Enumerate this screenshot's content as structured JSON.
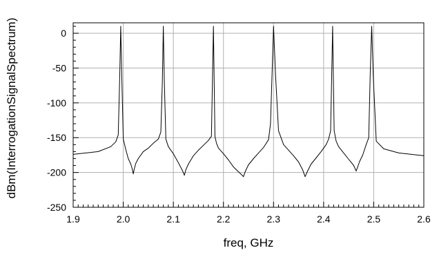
{
  "chart_data": {
    "type": "line",
    "title": "",
    "xlabel": "freq, GHz",
    "ylabel": "dBm(InterrogationSignalSpectrum)",
    "xlim": [
      1.9,
      2.6
    ],
    "ylim": [
      -250,
      15
    ],
    "x_ticks": [
      "1.9",
      "2.0",
      "2.1",
      "2.2",
      "2.3",
      "2.4",
      "2.5",
      "2.6"
    ],
    "y_ticks": [
      "0",
      "-50",
      "-100",
      "-150",
      "-200",
      "-250"
    ],
    "grid": true,
    "line_color": "#000000",
    "series": [
      {
        "x": [
          1.9,
          1.95,
          1.975,
          1.985,
          1.99,
          1.993,
          1.995,
          1.997,
          2.0,
          2.005,
          2.01,
          2.015,
          2.018,
          2.02,
          2.022,
          2.025,
          2.03,
          2.04,
          2.05,
          2.06,
          2.07,
          2.075,
          2.078,
          2.08,
          2.082,
          2.085,
          2.09,
          2.1,
          2.11,
          2.118,
          2.122,
          2.125,
          2.13,
          2.14,
          2.15,
          2.16,
          2.17,
          2.176,
          2.18,
          2.183,
          2.186,
          2.19,
          2.2,
          2.21,
          2.22,
          2.23,
          2.236,
          2.24,
          2.244,
          2.25,
          2.26,
          2.27,
          2.28,
          2.29,
          2.294,
          2.297,
          2.3,
          2.304,
          2.31,
          2.32,
          2.33,
          2.34,
          2.35,
          2.358,
          2.363,
          2.368,
          2.375,
          2.385,
          2.395,
          2.405,
          2.41,
          2.414,
          2.418,
          2.421,
          2.425,
          2.43,
          2.44,
          2.45,
          2.46,
          2.465,
          2.468,
          2.472,
          2.478,
          2.485,
          2.49,
          2.493,
          2.496,
          2.499,
          2.505,
          2.52,
          2.55,
          2.6
        ],
        "y": [
          -174,
          -170,
          -163,
          -156,
          -146,
          -60,
          10,
          -60,
          -152,
          -167,
          -180,
          -188,
          -195,
          -202,
          -195,
          -187,
          -180,
          -170,
          -165,
          -158,
          -152,
          -142,
          -70,
          10,
          -70,
          -152,
          -163,
          -173,
          -186,
          -197,
          -204,
          -196,
          -188,
          -176,
          -168,
          -161,
          -154,
          -148,
          10,
          -148,
          -158,
          -165,
          -173,
          -182,
          -192,
          -199,
          -203,
          -206,
          -198,
          -189,
          -180,
          -172,
          -164,
          -153,
          -130,
          -60,
          10,
          -60,
          -140,
          -160,
          -168,
          -176,
          -185,
          -196,
          -206,
          -198,
          -188,
          -179,
          -170,
          -160,
          -152,
          -140,
          10,
          -140,
          -155,
          -163,
          -172,
          -181,
          -190,
          -198,
          -192,
          -184,
          -175,
          -160,
          -150,
          -60,
          10,
          -60,
          -155,
          -166,
          -172,
          -176
        ]
      }
    ]
  }
}
